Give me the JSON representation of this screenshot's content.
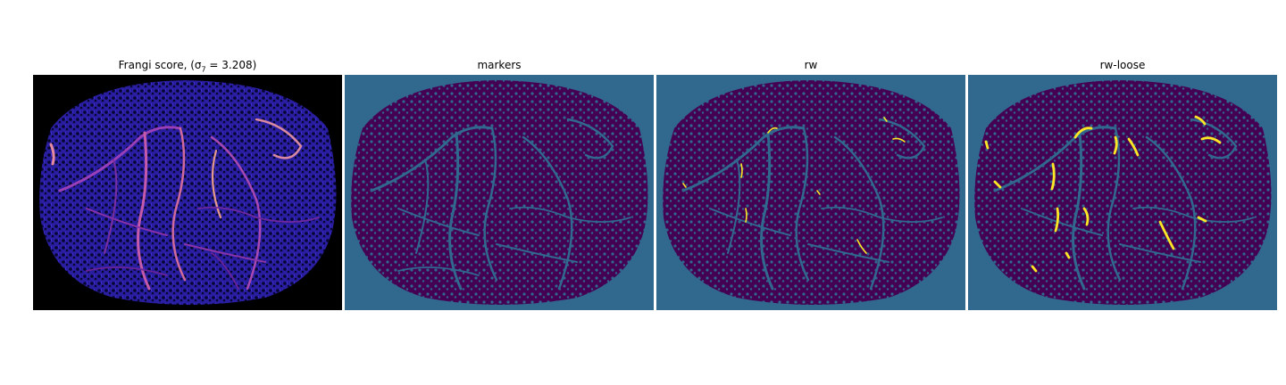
{
  "panels": [
    {
      "id": "frangi",
      "title": "Frangi score, (σ",
      "title_sub": "7",
      "title_tail": " = 3.208)",
      "background": "#000000",
      "tissue": "#1f1a8c",
      "holes": "#050530"
    },
    {
      "id": "markers",
      "title": "markers",
      "background": "#31688e",
      "tissue": "#440154"
    },
    {
      "id": "rw",
      "title": "rw",
      "background": "#31688e",
      "tissue": "#440154",
      "highlight": "#fde725"
    },
    {
      "id": "rw-loose",
      "title": "rw-loose",
      "background": "#31688e",
      "tissue": "#440154",
      "highlight": "#fde725"
    }
  ]
}
